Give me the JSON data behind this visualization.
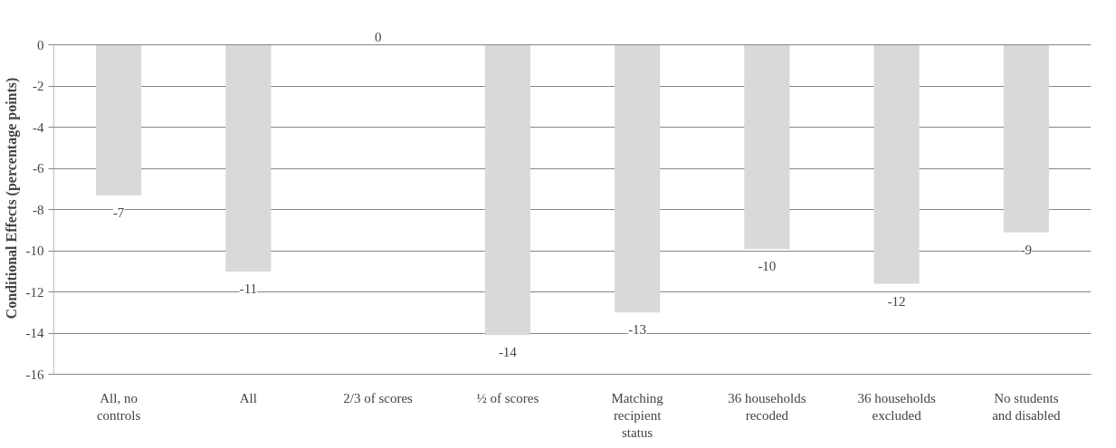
{
  "chart_data": {
    "type": "bar",
    "ylabel": "Conditional Effects (percentage points)",
    "categories": [
      "All, no controls",
      "All",
      "2/3 of scores",
      "½ of scores",
      "Matching recipient status",
      "36 households recoded",
      "36 households excluded",
      "No students and disabled"
    ],
    "values": [
      -7.3,
      -11,
      0,
      -14.1,
      -13,
      -9.9,
      -11.6,
      -9.1
    ],
    "value_labels": [
      "-7",
      "-11",
      "0",
      "-14",
      "-13",
      "-10",
      "-12",
      "-9"
    ],
    "color": "#d9d9d9",
    "ylim": [
      -16,
      0
    ],
    "yticks": [
      -16,
      -14,
      -12,
      -10,
      -8,
      -6,
      -4,
      -2,
      0
    ],
    "grid": "y"
  }
}
